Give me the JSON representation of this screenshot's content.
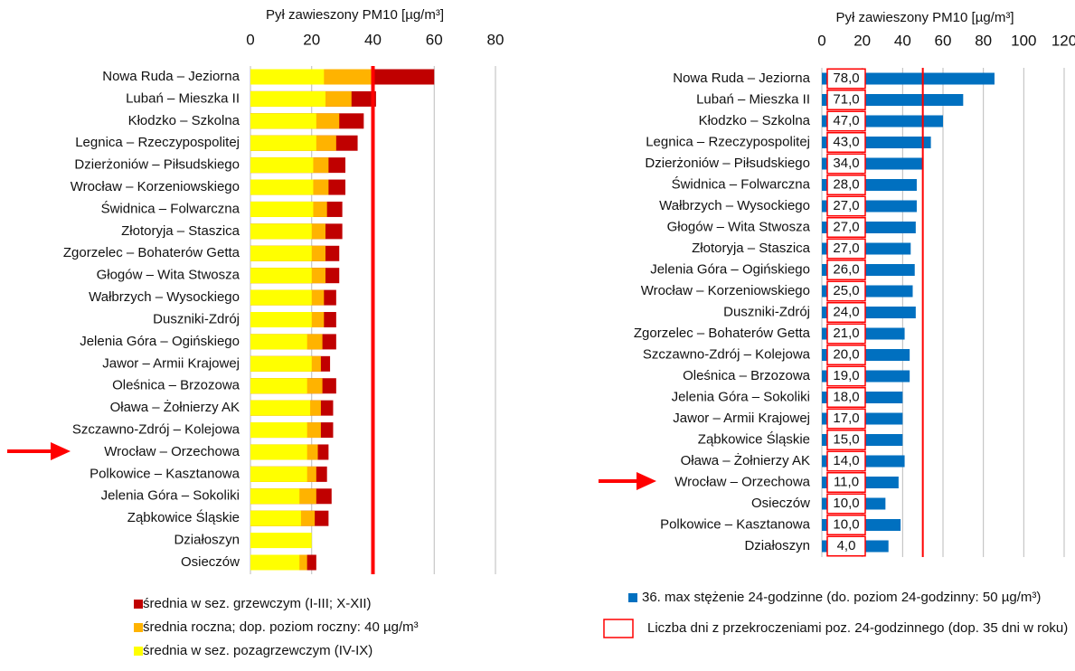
{
  "chart_data": [
    {
      "type": "bar",
      "orientation": "horizontal",
      "x_label": "Pył zawieszony PM10 [µg/m³]",
      "categories": [
        "Nowa Ruda – Jeziorna",
        "Lubań – Mieszka II",
        "Kłodzko – Szkolna",
        "Legnica – Rzeczypospolitej",
        "Dzierżoniów – Piłsudskiego",
        "Wrocław – Korzeniowskiego",
        "Świdnica – Folwarczna",
        "Złotoryja – Staszica",
        "Zgorzelec – Bohaterów Getta",
        "Głogów – Wita Stwosza",
        "Wałbrzych – Wysockiego",
        "Duszniki-Zdrój",
        "Jelenia Góra – Ogińskiego",
        "Jawor – Armii Krajowej",
        "Oleśnica – Brzozowa",
        "Oława – Żołnierzy AK",
        "Szczawno-Zdrój – Kolejowa",
        "Wrocław – Orzechowa",
        "Polkowice – Kasztanowa",
        "Jelenia Góra – Sokoliki",
        "Ząbkowice Śląskie",
        "Działoszyn",
        "Osieczów"
      ],
      "series": [
        {
          "name": "średnia w sez. grzewczym (I-III; X-XII)",
          "color": "#c00000",
          "values": [
            60,
            41,
            37,
            35,
            31,
            31,
            30,
            30,
            29,
            29,
            28,
            28,
            28,
            26,
            28,
            27,
            27,
            25.5,
            25,
            26.5,
            25.5,
            null,
            21.5
          ]
        },
        {
          "name": "średnia roczna; dop. poziom roczny: 40 µg/m³",
          "color": "#ffb300",
          "values": [
            39.5,
            33,
            29,
            28,
            25.5,
            25.5,
            25,
            24.5,
            24.5,
            24.5,
            24,
            24,
            23.5,
            23,
            23.5,
            23,
            23,
            22,
            21.5,
            21.5,
            21,
            null,
            18.5
          ]
        },
        {
          "name": "średnia w sez. pozagrzewczym (IV-IX)",
          "color": "#ffff00",
          "values": [
            24,
            24.5,
            21.5,
            21.5,
            20.5,
            20.5,
            20.5,
            20,
            20,
            20,
            20,
            20,
            18.5,
            20,
            18.5,
            19.5,
            18.5,
            18.5,
            18.5,
            16,
            16.5,
            20,
            16
          ]
        }
      ],
      "xlim": [
        0,
        80
      ],
      "xticks": [
        0,
        20,
        40,
        60,
        80
      ],
      "grid": true,
      "reference_line": 40,
      "reference_color": "#ff0000"
    },
    {
      "type": "bar",
      "orientation": "horizontal",
      "x_label": "Pył zawieszony PM10 [µg/m³]",
      "categories": [
        "Nowa Ruda – Jeziorna",
        "Lubań – Mieszka II",
        "Kłodzko – Szkolna",
        "Legnica – Rzeczypospolitej",
        "Dzierżoniów – Piłsudskiego",
        "Świdnica – Folwarczna",
        "Wałbrzych – Wysockiego",
        "Głogów – Wita Stwosza",
        "Złotoryja – Staszica",
        "Jelenia Góra – Ogińskiego",
        "Wrocław – Korzeniowskiego",
        "Duszniki-Zdrój",
        "Zgorzelec – Bohaterów Getta",
        "Szczawno-Zdrój – Kolejowa",
        "Oleśnica – Brzozowa",
        "Jelenia Góra – Sokoliki",
        "Jawor – Armii Krajowej",
        "Ząbkowice Śląskie",
        "Oława – Żołnierzy AK",
        "Wrocław – Orzechowa",
        "Osieczów",
        "Polkowice – Kasztanowa",
        "Działoszyn"
      ],
      "series": [
        {
          "name": "36. max stężenie 24-godzinne (do. poziom 24-godzinny: 50 µg/m³)",
          "color": "#0070c0",
          "values": [
            85.5,
            70,
            60,
            54,
            50,
            47,
            47,
            46.5,
            44,
            46,
            45,
            46.5,
            41,
            43.5,
            43.5,
            40,
            40,
            40,
            41,
            38,
            31.5,
            39,
            33
          ]
        }
      ],
      "days": {
        "name": "Liczba dni z przekroczeniami poz. 24-godzinnego (dop. 35 dni w roku)",
        "color": "#ff0000",
        "values": [
          78,
          71,
          47,
          43,
          34,
          28,
          27,
          27,
          27,
          26,
          25,
          24,
          21,
          20,
          19,
          18,
          17,
          15,
          14,
          11,
          10,
          10,
          4
        ],
        "value_labels": [
          "78,0",
          "71,0",
          "47,0",
          "43,0",
          "34,0",
          "28,0",
          "27,0",
          "27,0",
          "27,0",
          "26,0",
          "25,0",
          "24,0",
          "21,0",
          "20,0",
          "19,0",
          "18,0",
          "17,0",
          "15,0",
          "14,0",
          "11,0",
          "10,0",
          "10,0",
          "4,0"
        ]
      },
      "xlim": [
        0,
        120
      ],
      "xticks": [
        0,
        20,
        40,
        60,
        80,
        100,
        120
      ],
      "grid": true,
      "reference_line": 50,
      "reference_color": "#ff0000"
    }
  ]
}
